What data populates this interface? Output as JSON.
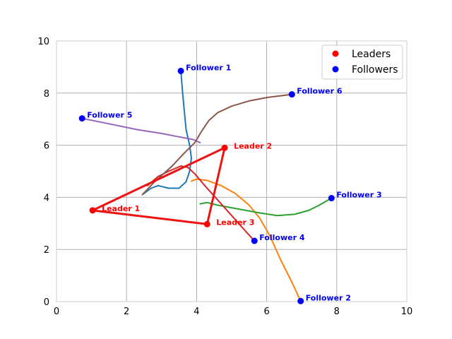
{
  "chart_data": {
    "type": "scatter",
    "title": "",
    "xlabel": "",
    "ylabel": "",
    "xlim": [
      0,
      10
    ],
    "ylim": [
      0,
      10
    ],
    "xticks": [
      "0",
      "2",
      "4",
      "6",
      "8",
      "10"
    ],
    "yticks": [
      "0",
      "2",
      "4",
      "6",
      "8",
      "10"
    ],
    "grid": true,
    "legend": {
      "placement": "top-right",
      "entries": [
        {
          "label": "Leaders",
          "color": "#ff0000"
        },
        {
          "label": "Followers",
          "color": "#0000ff"
        }
      ]
    },
    "leaders": {
      "color": "#ff0000",
      "edge_color": "#ee1111",
      "points": [
        {
          "label": "Leader 1",
          "x": 1.03,
          "y": 3.5
        },
        {
          "label": "Leader 2",
          "x": 4.8,
          "y": 5.9
        },
        {
          "label": "Leader 3",
          "x": 4.3,
          "y": 2.97
        }
      ],
      "edges": [
        [
          0,
          1
        ],
        [
          1,
          2
        ],
        [
          2,
          0
        ]
      ]
    },
    "followers": {
      "color": "#0000ff",
      "label_color": "#0000ee",
      "points": [
        {
          "label": "Follower 1",
          "x": 3.55,
          "y": 8.85,
          "path_color": "#1f77b4",
          "path": [
            [
              3.55,
              8.85
            ],
            [
              3.6,
              8.0
            ],
            [
              3.65,
              7.3
            ],
            [
              3.7,
              6.6
            ],
            [
              3.8,
              6.0
            ],
            [
              3.85,
              5.5
            ],
            [
              3.8,
              5.0
            ],
            [
              3.7,
              4.6
            ],
            [
              3.5,
              4.35
            ],
            [
              3.2,
              4.35
            ],
            [
              2.9,
              4.45
            ],
            [
              2.7,
              4.35
            ],
            [
              2.47,
              4.12
            ]
          ]
        },
        {
          "label": "Follower 2",
          "x": 6.97,
          "y": 0.02,
          "path_color": "#ff7f0e",
          "path": [
            [
              6.97,
              0.02
            ],
            [
              6.7,
              0.8
            ],
            [
              6.4,
              1.6
            ],
            [
              6.1,
              2.5
            ],
            [
              5.8,
              3.2
            ],
            [
              5.5,
              3.7
            ],
            [
              5.1,
              4.15
            ],
            [
              4.7,
              4.45
            ],
            [
              4.3,
              4.65
            ],
            [
              4.0,
              4.7
            ],
            [
              3.85,
              4.62
            ]
          ]
        },
        {
          "label": "Follower 3",
          "x": 7.85,
          "y": 3.97,
          "path_color": "#2ca02c",
          "path": [
            [
              7.85,
              3.97
            ],
            [
              7.5,
              3.7
            ],
            [
              7.2,
              3.5
            ],
            [
              6.8,
              3.35
            ],
            [
              6.3,
              3.3
            ],
            [
              5.8,
              3.4
            ],
            [
              5.2,
              3.55
            ],
            [
              4.6,
              3.7
            ],
            [
              4.3,
              3.8
            ],
            [
              4.1,
              3.75
            ]
          ]
        },
        {
          "label": "Follower 4",
          "x": 5.65,
          "y": 2.33,
          "path_color": "#d62728",
          "path": [
            [
              5.65,
              2.33
            ],
            [
              5.4,
              2.7
            ],
            [
              5.1,
              3.15
            ],
            [
              4.8,
              3.6
            ],
            [
              4.5,
              4.05
            ],
            [
              4.2,
              4.5
            ],
            [
              3.95,
              4.9
            ],
            [
              3.75,
              5.15
            ],
            [
              3.55,
              5.2
            ],
            [
              3.2,
              5.0
            ],
            [
              2.9,
              4.8
            ],
            [
              2.6,
              4.45
            ]
          ]
        },
        {
          "label": "Follower 5",
          "x": 0.73,
          "y": 7.03,
          "path_color": "#9467bd",
          "path": [
            [
              0.73,
              7.03
            ],
            [
              1.5,
              6.82
            ],
            [
              2.3,
              6.6
            ],
            [
              3.0,
              6.45
            ],
            [
              3.5,
              6.32
            ],
            [
              3.9,
              6.22
            ],
            [
              4.1,
              6.1
            ]
          ]
        },
        {
          "label": "Follower 6",
          "x": 6.72,
          "y": 7.95,
          "path_color": "#8c564b",
          "path": [
            [
              6.72,
              7.95
            ],
            [
              6.3,
              7.88
            ],
            [
              6.0,
              7.83
            ],
            [
              5.5,
              7.7
            ],
            [
              5.0,
              7.5
            ],
            [
              4.6,
              7.25
            ],
            [
              4.35,
              6.95
            ],
            [
              4.15,
              6.55
            ],
            [
              3.95,
              6.1
            ],
            [
              3.65,
              5.7
            ],
            [
              3.3,
              5.2
            ],
            [
              2.8,
              4.6
            ],
            [
              2.45,
              4.1
            ]
          ]
        }
      ]
    }
  }
}
